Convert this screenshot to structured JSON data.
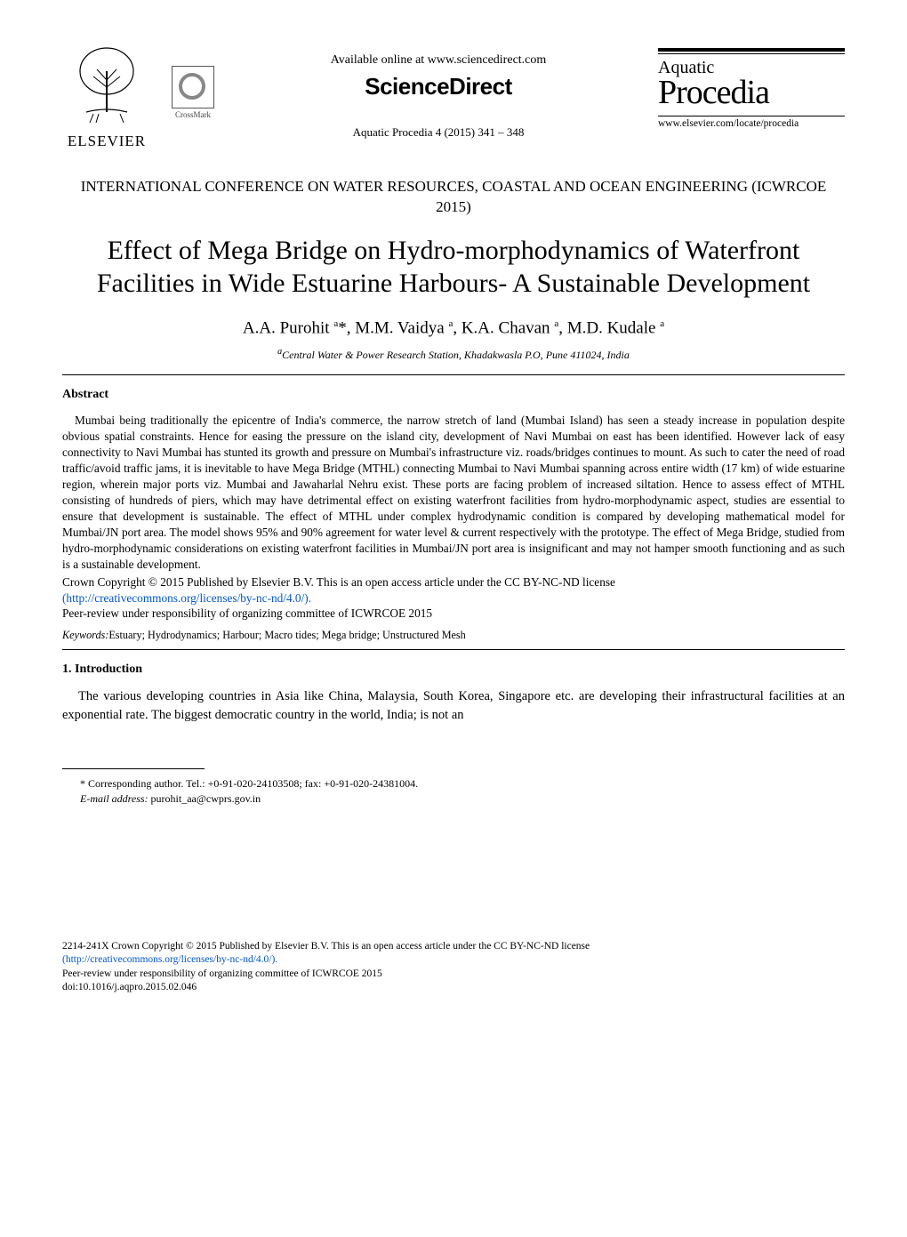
{
  "header": {
    "publisher": "ELSEVIER",
    "crossmark_label": "CrossMark",
    "available_online": "Available online at www.sciencedirect.com",
    "sciencedirect": "ScienceDirect",
    "citation": "Aquatic Procedia 4 (2015) 341 – 348",
    "journal_line1": "Aquatic",
    "journal_line2": "Procedia",
    "journal_url": "www.elsevier.com/locate/procedia"
  },
  "conference": "INTERNATIONAL CONFERENCE ON WATER RESOURCES, COASTAL AND OCEAN ENGINEERING (ICWRCOE 2015)",
  "title": "Effect of Mega Bridge on Hydro-morphodynamics of Waterfront Facilities in Wide Estuarine Harbours- A Sustainable Development",
  "authors_html": "A.A. Purohit <sup>a</sup>*, M.M. Vaidya <sup>a</sup>, K.A. Chavan <sup>a</sup>, M.D. Kudale <sup>a</sup>",
  "affiliation": "aCentral Water & Power Research Station, Khadakwasla P.O, Pune 411024, India",
  "abstract_heading": "Abstract",
  "abstract": "Mumbai being traditionally the epicentre of India's commerce, the narrow stretch of land (Mumbai Island) has seen a steady increase in population despite obvious spatial constraints. Hence for easing the pressure on the island city, development of Navi Mumbai on east has been identified. However lack of easy connectivity to Navi Mumbai has stunted its growth and pressure on Mumbai's infrastructure viz. roads/bridges continues to mount. As such to cater the need of road traffic/avoid traffic jams, it is inevitable to have Mega Bridge (MTHL) connecting Mumbai to Navi Mumbai spanning across entire width (17 km) of wide estuarine region, wherein major ports viz. Mumbai and Jawaharlal Nehru exist. These ports are facing problem of increased siltation. Hence to assess effect of MTHL consisting of hundreds of piers, which may have detrimental effect on existing waterfront facilities from hydro-morphodynamic aspect, studies are essential to ensure that development is sustainable. The effect of MTHL under complex hydrodynamic condition is compared by developing mathematical model for Mumbai/JN port area. The model shows 95% and 90% agreement for water level & current respectively with the prototype. The effect of Mega Bridge, studied from hydro-morphodynamic considerations on existing waterfront facilities in Mumbai/JN port area is insignificant and may not hamper smooth functioning and as such is a sustainable development.",
  "license": {
    "line1": "Crown Copyright © 2015 Published by Elsevier B.V. This is an open access article under the CC BY-NC-ND license",
    "link_text": "(http://creativecommons.org/licenses/by-nc-nd/4.0/).",
    "link_href": "http://creativecommons.org/licenses/by-nc-nd/4.0/",
    "peer_review": "Peer-review under responsibility of organizing committee of ICWRCOE 2015"
  },
  "keywords_label": "Keywords:",
  "keywords": "Estuary; Hydrodynamics; Harbour; Macro tides; Mega bridge; Unstructured Mesh",
  "intro_heading": "1. Introduction",
  "intro_text": "The various developing countries in Asia like China, Malaysia, South Korea, Singapore etc. are developing their infrastructural facilities at an exponential rate. The biggest democratic country in the world, India; is not an",
  "footnote": {
    "corr": "* Corresponding author. Tel.: +0-91-020-24103508; fax: +0-91-020-24381004.",
    "email_label": "E-mail address:",
    "email": "purohit_aa@cwprs.gov.in"
  },
  "footer": {
    "line1": "2214-241X Crown Copyright © 2015 Published by Elsevier B.V. This is an open access article under the CC BY-NC-ND license",
    "link_text": "(http://creativecommons.org/licenses/by-nc-nd/4.0/).",
    "link_href": "http://creativecommons.org/licenses/by-nc-nd/4.0/",
    "peer_review": "Peer-review under responsibility of organizing committee of ICWRCOE 2015",
    "doi": "doi:10.1016/j.aqpro.2015.02.046"
  },
  "colors": {
    "text": "#000000",
    "link": "#0056cc",
    "background": "#ffffff"
  }
}
